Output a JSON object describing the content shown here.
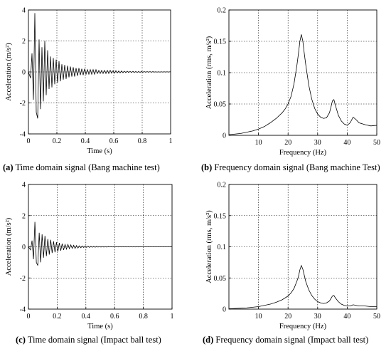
{
  "chart_data": [
    {
      "type": "line",
      "panel_label": "(a)",
      "caption": "Time domain signal (Bang machine test)",
      "xlabel": "Time (s)",
      "ylabel": "Acceleration  (m/s²)",
      "xlim": [
        0,
        1
      ],
      "ylim": [
        -4,
        4
      ],
      "xticks": [
        "0",
        "0.2",
        "0.4",
        "0.6",
        "0.8",
        "1"
      ],
      "yticks": [
        "-4",
        "-2",
        "0",
        "2",
        "4"
      ],
      "grid": true,
      "series": [
        {
          "x": [
            0,
            0.015,
            0.025,
            0.035,
            0.045,
            0.055,
            0.065,
            0.075,
            0.085,
            0.095,
            0.105,
            0.115,
            0.125,
            0.135,
            0.145,
            0.155,
            0.165,
            0.175,
            0.185,
            0.195,
            0.205,
            0.215,
            0.225,
            0.235,
            0.245,
            0.255,
            0.265,
            0.275,
            0.285,
            0.295,
            0.305,
            0.315,
            0.325,
            0.335,
            0.345,
            0.355,
            0.365,
            0.375,
            0.385,
            0.395,
            0.405,
            0.415,
            0.425,
            0.435,
            0.445,
            0.455,
            0.465,
            0.475,
            0.485,
            0.495,
            0.505,
            0.515,
            0.525,
            0.535,
            0.545,
            0.555,
            0.565,
            0.575,
            0.585,
            0.595,
            0.605,
            0.615,
            0.625,
            0.635,
            0.645,
            0.655,
            0.665,
            0.675,
            0.685,
            0.695,
            0.705,
            0.715,
            0.725,
            0.735,
            0.745,
            0.755,
            0.765,
            0.775,
            0.785,
            0.795,
            0.805,
            0.815,
            0.825,
            0.835,
            0.845,
            0.855,
            0.865,
            0.875,
            0.885,
            0.895,
            0.905,
            0.915,
            0.925,
            0.935,
            0.945,
            0.955,
            0.965,
            0.975,
            0.985,
            0.995,
            1.0
          ],
          "y": [
            0,
            -0.4,
            1.2,
            -1.8,
            3.8,
            -2.6,
            -3.0,
            2.1,
            -2.4,
            1.6,
            -1.9,
            2.0,
            -1.5,
            1.4,
            -1.1,
            1.0,
            -1.0,
            0.9,
            -0.8,
            0.8,
            -0.7,
            0.7,
            -0.6,
            0.5,
            -0.5,
            0.45,
            -0.45,
            0.4,
            -0.35,
            0.35,
            -0.3,
            0.3,
            -0.3,
            0.25,
            -0.25,
            0.25,
            -0.2,
            0.2,
            -0.2,
            0.2,
            -0.15,
            0.15,
            -0.15,
            0.15,
            -0.15,
            0.15,
            -0.15,
            0.15,
            -0.1,
            0.1,
            -0.1,
            0.1,
            -0.1,
            0.1,
            -0.1,
            0.1,
            -0.1,
            0.1,
            -0.08,
            0.08,
            -0.08,
            0.08,
            -0.06,
            0.06,
            -0.06,
            0.06,
            -0.05,
            0.05,
            -0.05,
            0.05,
            -0.04,
            0.04,
            -0.04,
            0.04,
            -0.03,
            0.03,
            -0.03,
            0.03,
            -0.03,
            0.03,
            -0.02,
            0.02,
            -0.02,
            0.02,
            -0.02,
            0.02,
            -0.02,
            0.02,
            -0.01,
            0.01,
            -0.01,
            0.01,
            -0.01,
            0.01,
            -0.01,
            0.01,
            -0.01,
            0.01,
            -0.01,
            0.01,
            0
          ]
        }
      ]
    },
    {
      "type": "line",
      "panel_label": "(b)",
      "caption": "Frequency domain signal (Bang machine Test)",
      "xlabel": "Frequency  (Hz)",
      "ylabel": "Acceleration (rms, m/s²)",
      "xlim": [
        0,
        50
      ],
      "ylim": [
        0,
        0.2
      ],
      "xticks": [
        "10",
        "20",
        "30",
        "40",
        "50"
      ],
      "yticks": [
        "0",
        "0.05",
        "0.1",
        "0.15",
        "0.2"
      ],
      "grid": true,
      "series": [
        {
          "x": [
            0,
            2,
            4,
            6,
            8,
            10,
            12,
            14,
            16,
            18,
            19,
            20,
            21,
            22,
            23,
            23.5,
            24,
            24.5,
            25,
            25.5,
            26,
            27,
            28,
            29,
            30,
            31,
            32,
            33,
            34,
            34.5,
            35,
            35.5,
            36,
            37,
            38,
            39,
            40,
            41,
            42,
            43,
            44,
            46,
            48,
            50
          ],
          "y": [
            0.001,
            0.002,
            0.003,
            0.005,
            0.007,
            0.01,
            0.014,
            0.02,
            0.027,
            0.036,
            0.042,
            0.05,
            0.062,
            0.082,
            0.112,
            0.13,
            0.15,
            0.161,
            0.15,
            0.13,
            0.112,
            0.08,
            0.058,
            0.043,
            0.034,
            0.029,
            0.027,
            0.028,
            0.036,
            0.045,
            0.055,
            0.057,
            0.048,
            0.032,
            0.023,
            0.018,
            0.016,
            0.02,
            0.029,
            0.025,
            0.02,
            0.017,
            0.015,
            0.016
          ]
        }
      ]
    },
    {
      "type": "line",
      "panel_label": "(c)",
      "caption": "Time domain signal (Impact ball test)",
      "xlabel": "Time (s)",
      "ylabel": "Acceleration  (m/s²)",
      "xlim": [
        0,
        1
      ],
      "ylim": [
        -4,
        4
      ],
      "xticks": [
        "0",
        "0.2",
        "0.4",
        "0.6",
        "0.8",
        "1"
      ],
      "yticks": [
        "-4",
        "-2",
        "0",
        "2",
        "4"
      ],
      "grid": true,
      "series": [
        {
          "x": [
            0,
            0.015,
            0.025,
            0.035,
            0.045,
            0.055,
            0.065,
            0.075,
            0.085,
            0.095,
            0.105,
            0.115,
            0.125,
            0.135,
            0.145,
            0.155,
            0.165,
            0.175,
            0.185,
            0.195,
            0.205,
            0.215,
            0.225,
            0.235,
            0.245,
            0.255,
            0.265,
            0.275,
            0.285,
            0.295,
            0.305,
            0.315,
            0.325,
            0.335,
            0.345,
            0.355,
            0.365,
            0.375,
            0.385,
            0.395,
            0.405,
            0.415,
            0.425,
            0.435,
            0.445,
            0.455,
            0.465,
            0.475,
            0.485,
            0.495,
            0.505,
            0.515,
            0.525,
            0.535,
            0.545,
            0.555,
            0.565,
            0.575,
            0.585,
            0.595,
            0.605,
            0.615,
            0.625,
            0.635,
            0.645,
            0.655,
            0.665,
            0.675,
            0.685,
            0.695,
            0.705,
            0.715,
            0.725,
            0.735,
            0.745,
            0.755,
            0.765,
            0.775,
            0.785,
            0.795,
            0.805,
            0.815,
            0.825,
            0.835,
            0.845,
            0.855,
            0.865,
            0.875,
            0.885,
            0.895,
            0.905,
            0.915,
            0.925,
            0.935,
            0.945,
            0.955,
            0.965,
            0.975,
            0.985,
            0.995,
            1.0
          ],
          "y": [
            0,
            -0.2,
            0.4,
            -0.8,
            1.6,
            -1.0,
            -1.2,
            0.9,
            -1.0,
            0.8,
            -0.7,
            0.7,
            -0.6,
            0.5,
            -0.5,
            0.45,
            -0.4,
            0.35,
            -0.35,
            0.3,
            -0.3,
            0.25,
            -0.25,
            0.2,
            -0.2,
            0.15,
            -0.15,
            0.15,
            -0.12,
            0.12,
            -0.1,
            0.1,
            -0.1,
            0.08,
            -0.08,
            0.06,
            -0.06,
            0.05,
            -0.05,
            0.05,
            -0.04,
            0.04,
            -0.04,
            0.03,
            -0.03,
            0.03,
            -0.03,
            0.03,
            -0.02,
            0.02,
            -0.02,
            0.02,
            -0.02,
            0.02,
            -0.02,
            0.02,
            -0.01,
            0.01,
            -0.01,
            0.01,
            -0.01,
            0.01,
            -0.01,
            0.01,
            -0.01,
            0.01,
            -0.01,
            0.01,
            -0.01,
            0.01,
            -0.01,
            0.01,
            -0.01,
            0.01,
            -0.01,
            0.01,
            -0.01,
            0.01,
            0,
            0,
            0,
            0,
            0,
            0,
            0,
            0,
            0,
            0,
            0,
            0,
            0,
            0,
            0,
            0,
            0,
            0,
            0,
            0,
            0,
            0,
            0
          ]
        }
      ]
    },
    {
      "type": "line",
      "panel_label": "(d)",
      "caption": "Frequency domain signal (Impact ball test)",
      "xlabel": "Frequency  (Hz)",
      "ylabel": "Acceleration (rms, m/s²)",
      "xlim": [
        0,
        50
      ],
      "ylim": [
        0,
        0.2
      ],
      "xticks": [
        "10",
        "20",
        "30",
        "40",
        "50"
      ],
      "yticks": [
        "0",
        "0.05",
        "0.1",
        "0.15",
        "0.2"
      ],
      "grid": true,
      "series": [
        {
          "x": [
            0,
            2,
            4,
            6,
            8,
            10,
            12,
            14,
            16,
            18,
            19,
            20,
            21,
            22,
            23,
            23.5,
            24,
            24.5,
            25,
            25.5,
            26,
            27,
            28,
            29,
            30,
            31,
            32,
            33,
            34,
            34.5,
            35,
            35.5,
            36,
            37,
            38,
            39,
            40,
            41,
            42,
            43,
            44,
            46,
            48,
            50
          ],
          "y": [
            0.0005,
            0.001,
            0.0015,
            0.002,
            0.003,
            0.004,
            0.006,
            0.008,
            0.011,
            0.015,
            0.018,
            0.021,
            0.026,
            0.033,
            0.045,
            0.052,
            0.063,
            0.07,
            0.064,
            0.054,
            0.044,
            0.031,
            0.022,
            0.016,
            0.012,
            0.01,
            0.009,
            0.01,
            0.013,
            0.017,
            0.021,
            0.022,
            0.018,
            0.012,
            0.008,
            0.006,
            0.005,
            0.005,
            0.007,
            0.006,
            0.005,
            0.005,
            0.004,
            0.004
          ]
        }
      ]
    }
  ]
}
